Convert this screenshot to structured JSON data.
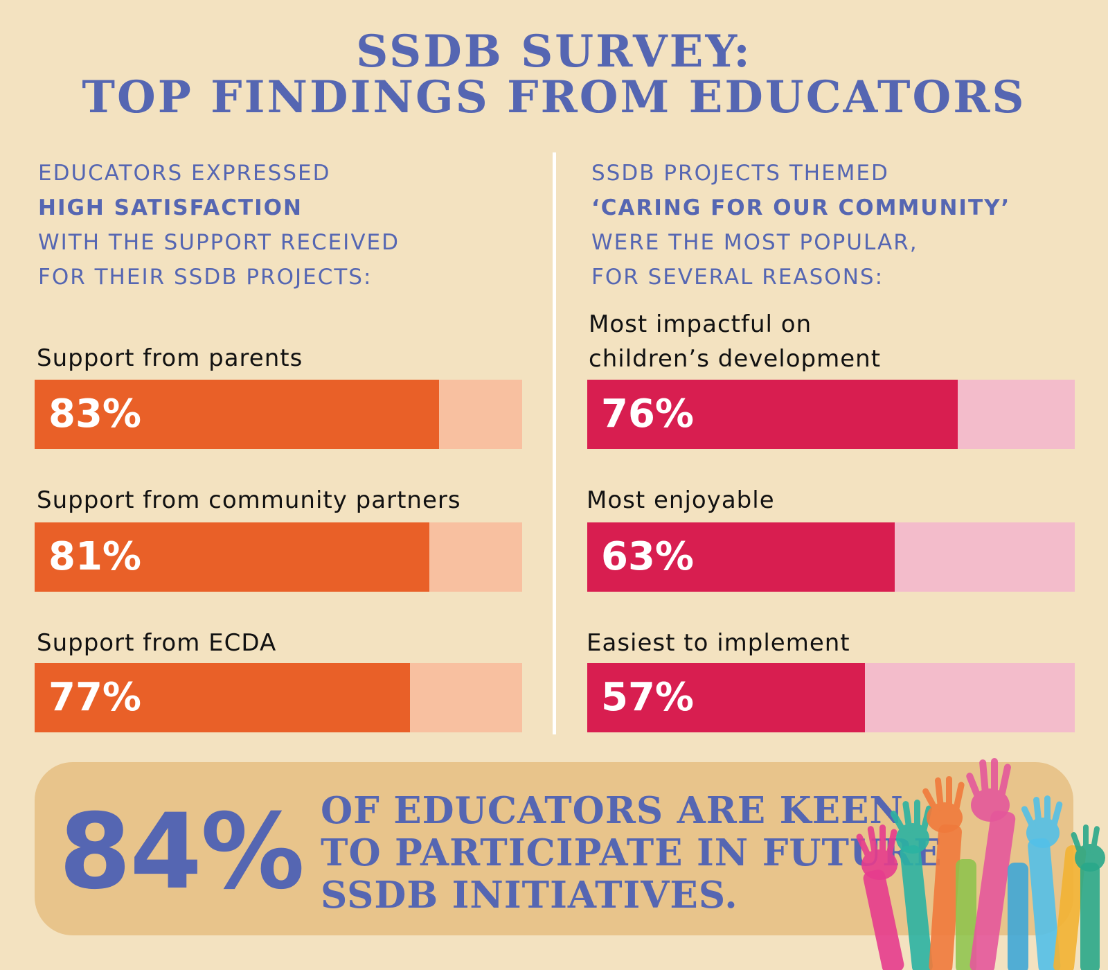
{
  "title": {
    "line1": "SSDB SURVEY:",
    "line2": "TOP FINDINGS FROM EDUCATORS"
  },
  "left_intro": {
    "line1": "EDUCATORS EXPRESSED",
    "line2": "HIGH SATISFACTION",
    "line3": "WITH THE SUPPORT RECEIVED",
    "line4": "FOR THEIR SSDB PROJECTS:"
  },
  "right_intro": {
    "line1": "SSDB PROJECTS THEMED",
    "line2": "‘CARING FOR OUR COMMUNITY’",
    "line3": "WERE THE MOST POPULAR,",
    "line4": "FOR SEVERAL REASONS:"
  },
  "chart_data": [
    {
      "type": "bar",
      "orientation": "horizontal",
      "categories": [
        "Support from parents",
        "Support from community partners",
        "Support from ECDA"
      ],
      "values": [
        83,
        81,
        77
      ],
      "value_labels": [
        "83%",
        "81%",
        "77%"
      ],
      "ylim": [
        0,
        100
      ],
      "colors": {
        "fill": "#e96028",
        "track": "#f8c0a0"
      }
    },
    {
      "type": "bar",
      "orientation": "horizontal",
      "categories": [
        "Most impactful on children’s development",
        "Most enjoyable",
        "Easiest to implement"
      ],
      "category_lines": [
        [
          "Most impactful on",
          "children’s development"
        ],
        [
          "Most enjoyable"
        ],
        [
          "Easiest to implement"
        ]
      ],
      "values": [
        76,
        63,
        57
      ],
      "value_labels": [
        "76%",
        "63%",
        "57%"
      ],
      "ylim": [
        0,
        100
      ],
      "colors": {
        "fill": "#d81e50",
        "track": "#f3bccb"
      }
    }
  ],
  "banner": {
    "percent": "84%",
    "line1": "OF EDUCATORS ARE KEEN",
    "line2": "TO PARTICIPATE IN FUTURE",
    "line3": "SSDB INITIATIVES."
  },
  "colors": {
    "background": "#f3e2c0",
    "accent_blue": "#5566b2",
    "banner": "#e8c48b"
  },
  "icons": [
    "raised-hands-illustration"
  ]
}
